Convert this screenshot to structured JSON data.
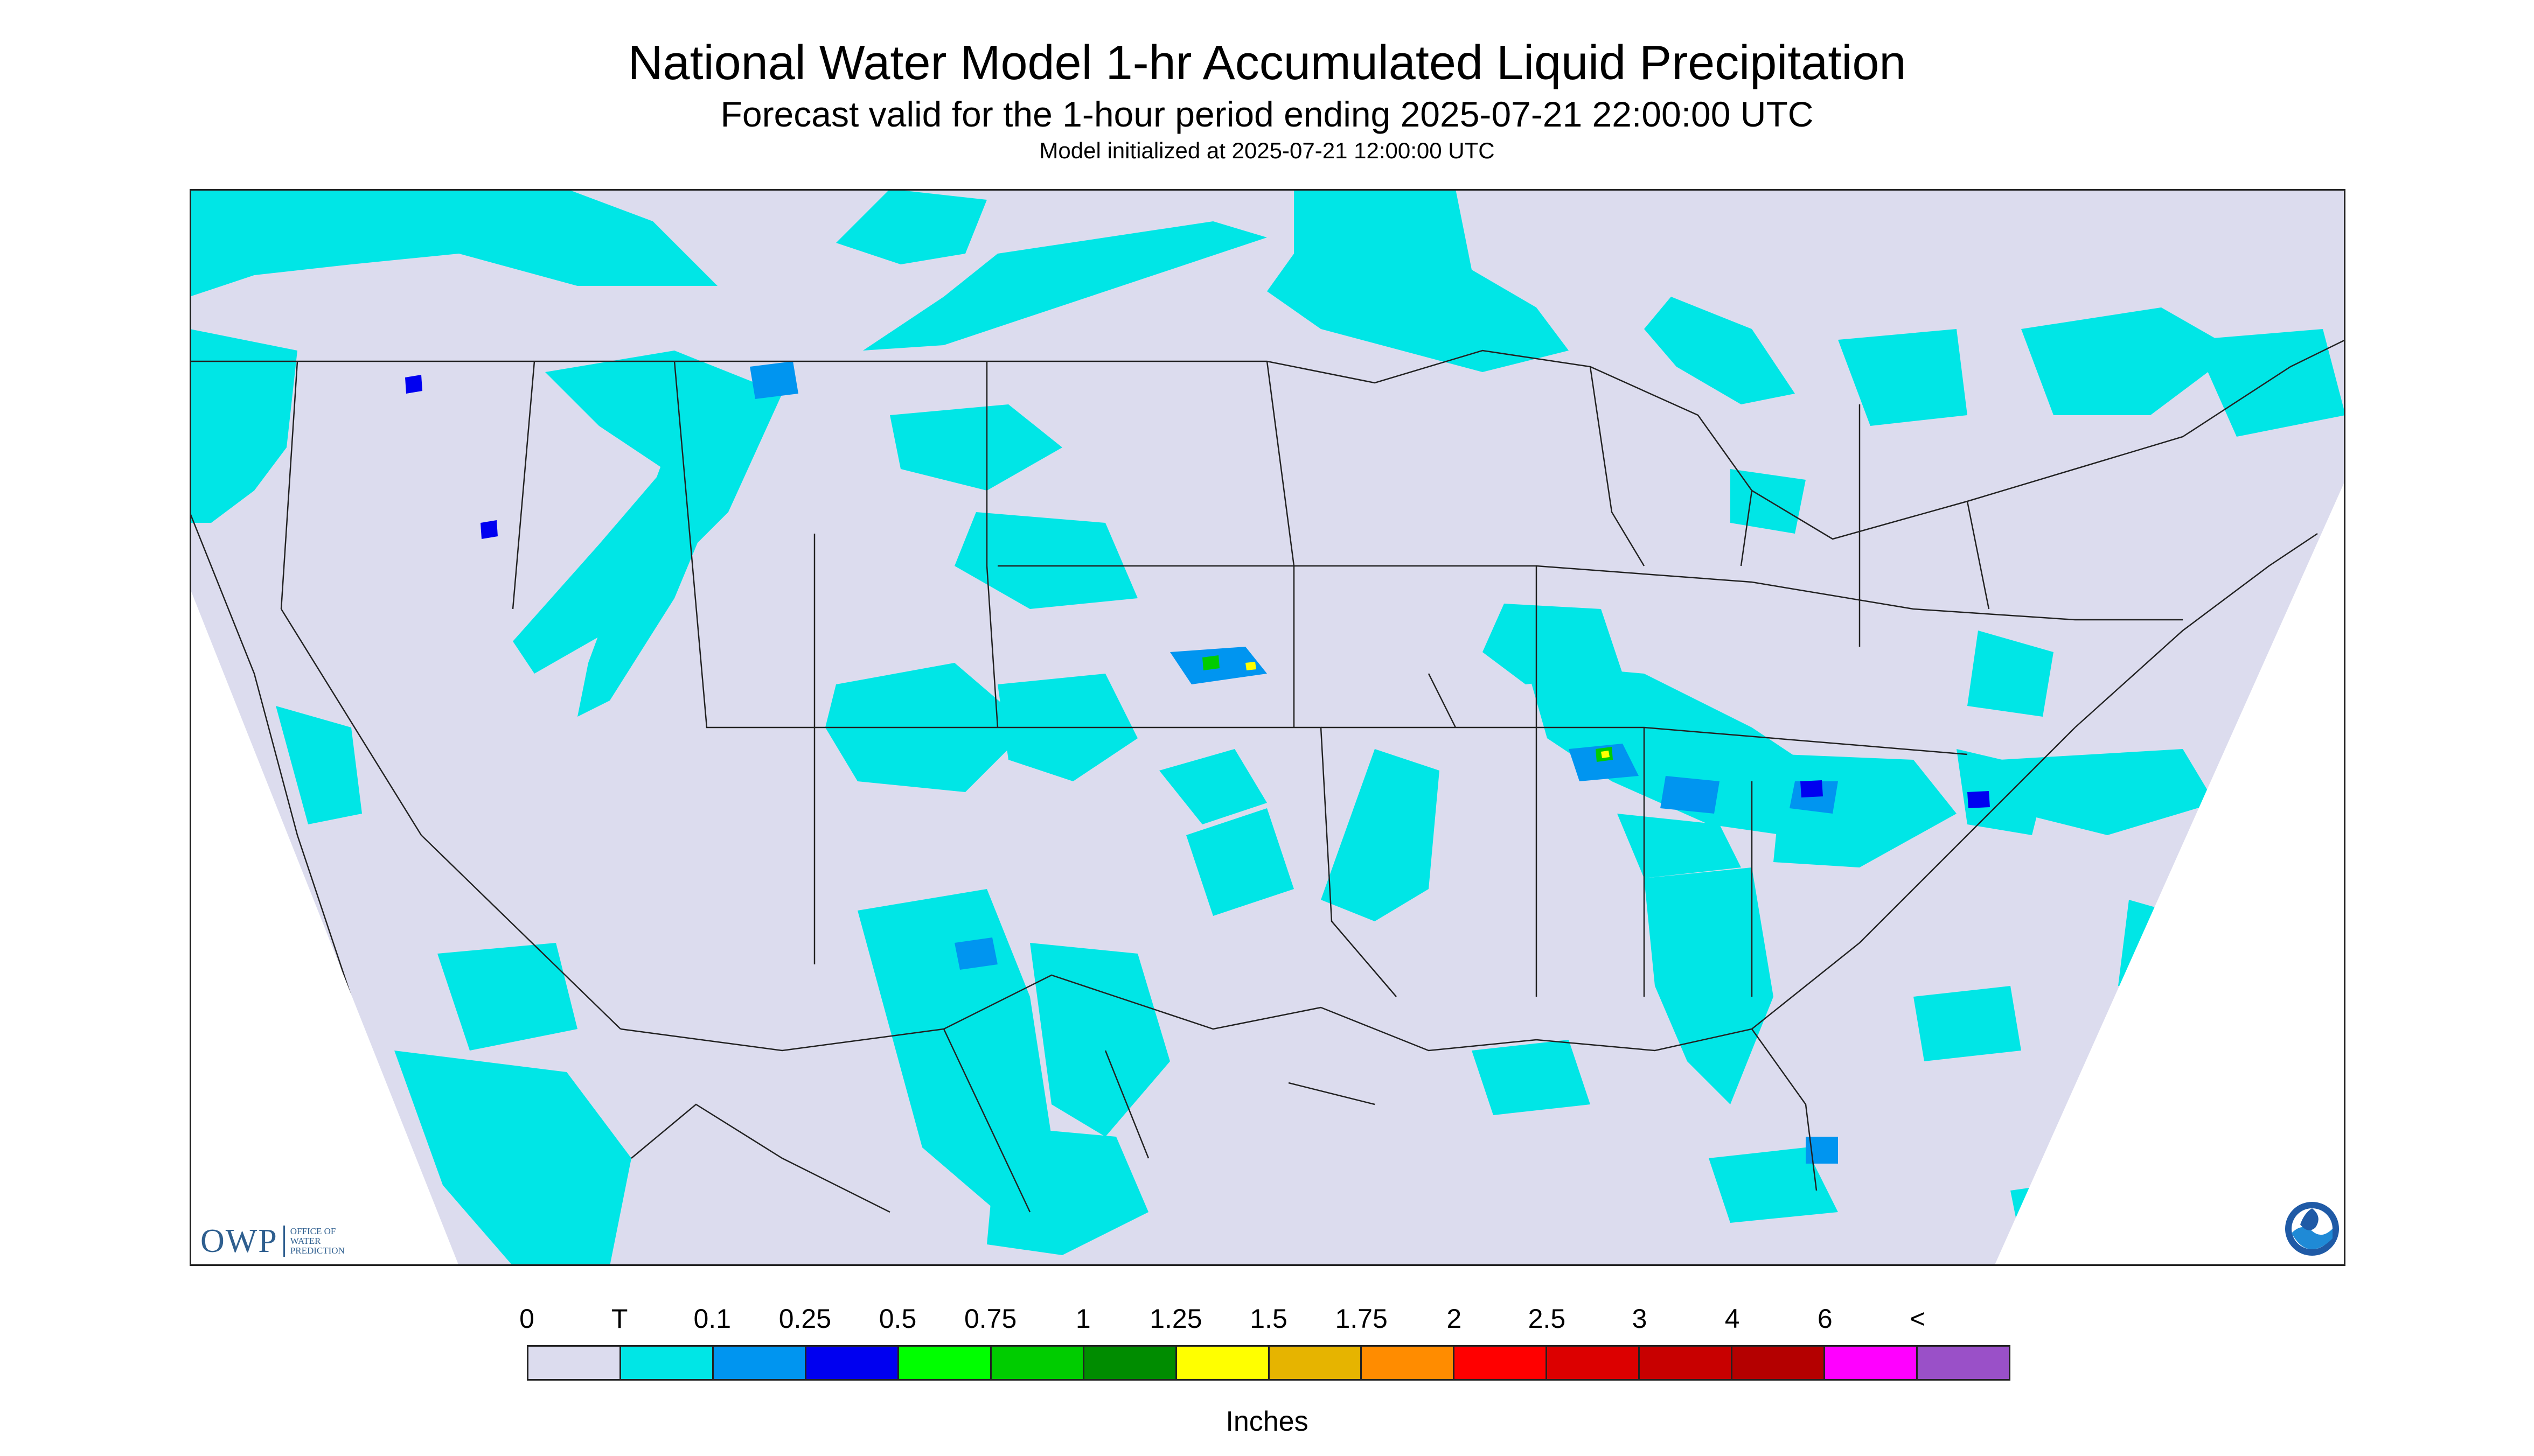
{
  "header": {
    "title": "National Water Model 1-hr Accumulated Liquid Precipitation",
    "subtitle": "Forecast valid for the 1-hour period ending 2025-07-21 22:00:00 UTC",
    "init": "Model initialized at 2025-07-21 12:00:00 UTC"
  },
  "map": {
    "background_color": "#dcdcee",
    "no_data_color": "#ffffff",
    "border_color": "#222222"
  },
  "legend": {
    "ticks": [
      "0",
      "T",
      "0.1",
      "0.25",
      "0.5",
      "0.75",
      "1",
      "1.25",
      "1.5",
      "1.75",
      "2",
      "2.5",
      "3",
      "4",
      "6",
      "<"
    ],
    "colors": [
      "#dcdcee",
      "#00e6e6",
      "#0095f0",
      "#0000f0",
      "#00ff00",
      "#00cc00",
      "#008c00",
      "#ffff00",
      "#e6b400",
      "#ff8c00",
      "#ff0000",
      "#dc0000",
      "#c80000",
      "#b40000",
      "#ff00ff",
      "#9a50c8"
    ],
    "units": "Inches"
  },
  "logos": {
    "owp_mark": "OWP",
    "owp_sub": "OFFICE OF WATER PREDICTION",
    "noaa": "NOAA",
    "owp_icon": "owp-logo",
    "noaa_icon": "noaa-seal"
  }
}
